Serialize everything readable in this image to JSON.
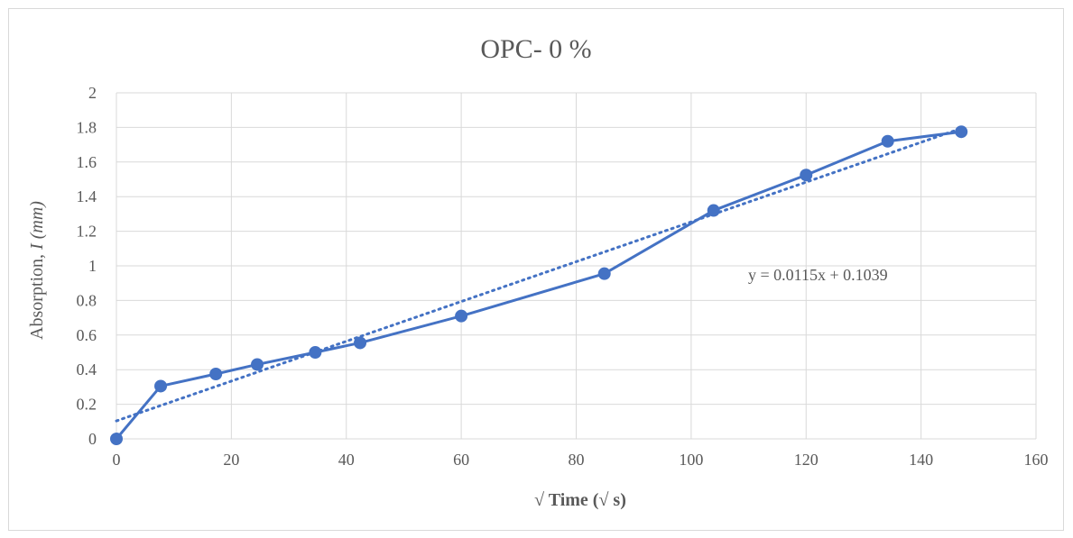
{
  "chart_data": {
    "type": "scatter",
    "title": "OPC- 0 %",
    "xlabel": "√ Time (√ s)",
    "ylabel_prefix": "Absorption, ",
    "ylabel_italic": "I (mm)",
    "xlim": [
      0,
      160
    ],
    "ylim": [
      0,
      2
    ],
    "x_ticks": [
      0,
      20,
      40,
      60,
      80,
      100,
      120,
      140,
      160
    ],
    "y_ticks": [
      "0",
      "0.2",
      "0.4",
      "0.6",
      "0.8",
      "1",
      "1.2",
      "1.4",
      "1.6",
      "1.8",
      "2"
    ],
    "grid": true,
    "series": [
      {
        "x": [
          0,
          7.7,
          17.3,
          24.5,
          34.6,
          42.4,
          60,
          84.9,
          103.9,
          120,
          134.2,
          147
        ],
        "y": [
          0,
          0.305,
          0.375,
          0.43,
          0.5,
          0.555,
          0.71,
          0.955,
          1.32,
          1.525,
          1.72,
          1.775
        ],
        "color": "#4472c4"
      }
    ],
    "trendline": {
      "type": "linear",
      "slope": 0.0115,
      "intercept": 0.1039,
      "x_range": [
        0,
        147
      ],
      "equation_label": "y = 0.0115x + 0.1039"
    }
  }
}
